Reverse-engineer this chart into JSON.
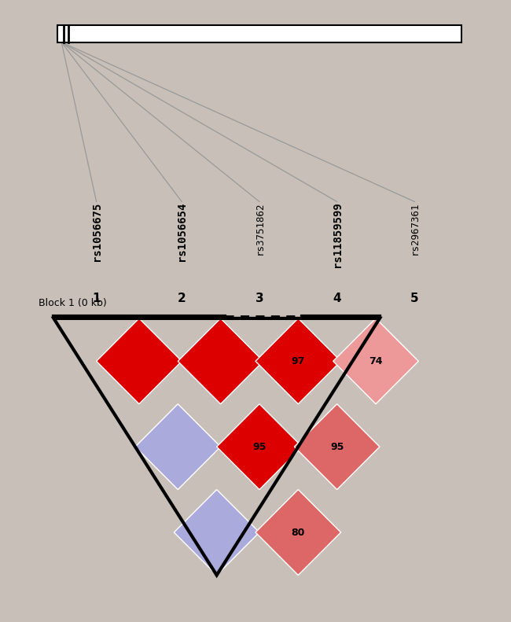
{
  "background_color": "#c8c0b8",
  "fig_width": 6.5,
  "fig_height": 7.91,
  "snp_labels": [
    "rs1056675",
    "rs1056654",
    "rs3751862",
    "rs11859599",
    "rs2967361"
  ],
  "snp_bold": [
    true,
    true,
    false,
    true,
    false
  ],
  "col_numbers": [
    "1",
    "2",
    "3",
    "4",
    "5"
  ],
  "block_label": "Block 1 (0 kb)",
  "ld_cells": [
    {
      "i": 1,
      "j": 0,
      "color": "#dd0000",
      "label": ""
    },
    {
      "i": 2,
      "j": 0,
      "color": "#aaaadd",
      "label": ""
    },
    {
      "i": 2,
      "j": 1,
      "color": "#dd0000",
      "label": ""
    },
    {
      "i": 3,
      "j": 0,
      "color": "#aaaadd",
      "label": ""
    },
    {
      "i": 3,
      "j": 1,
      "color": "#dd0000",
      "label": "95"
    },
    {
      "i": 3,
      "j": 2,
      "color": "#dd0000",
      "label": "97"
    },
    {
      "i": 4,
      "j": 1,
      "color": "#dd6666",
      "label": "80"
    },
    {
      "i": 4,
      "j": 2,
      "color": "#dd6666",
      "label": "95"
    },
    {
      "i": 4,
      "j": 3,
      "color": "#ee9999",
      "label": "74"
    }
  ],
  "block_snps_range": [
    0,
    3
  ],
  "colors": {
    "deep_red": "#dd0000",
    "light_blue": "#aaaadd",
    "medium_pink": "#dd6666",
    "light_pink": "#ee9999",
    "block_border": "#000000",
    "gene_bar_fill": "#ffffff",
    "gene_bar_border": "#000000",
    "line_color": "#888888",
    "text_dark": "#000000"
  }
}
